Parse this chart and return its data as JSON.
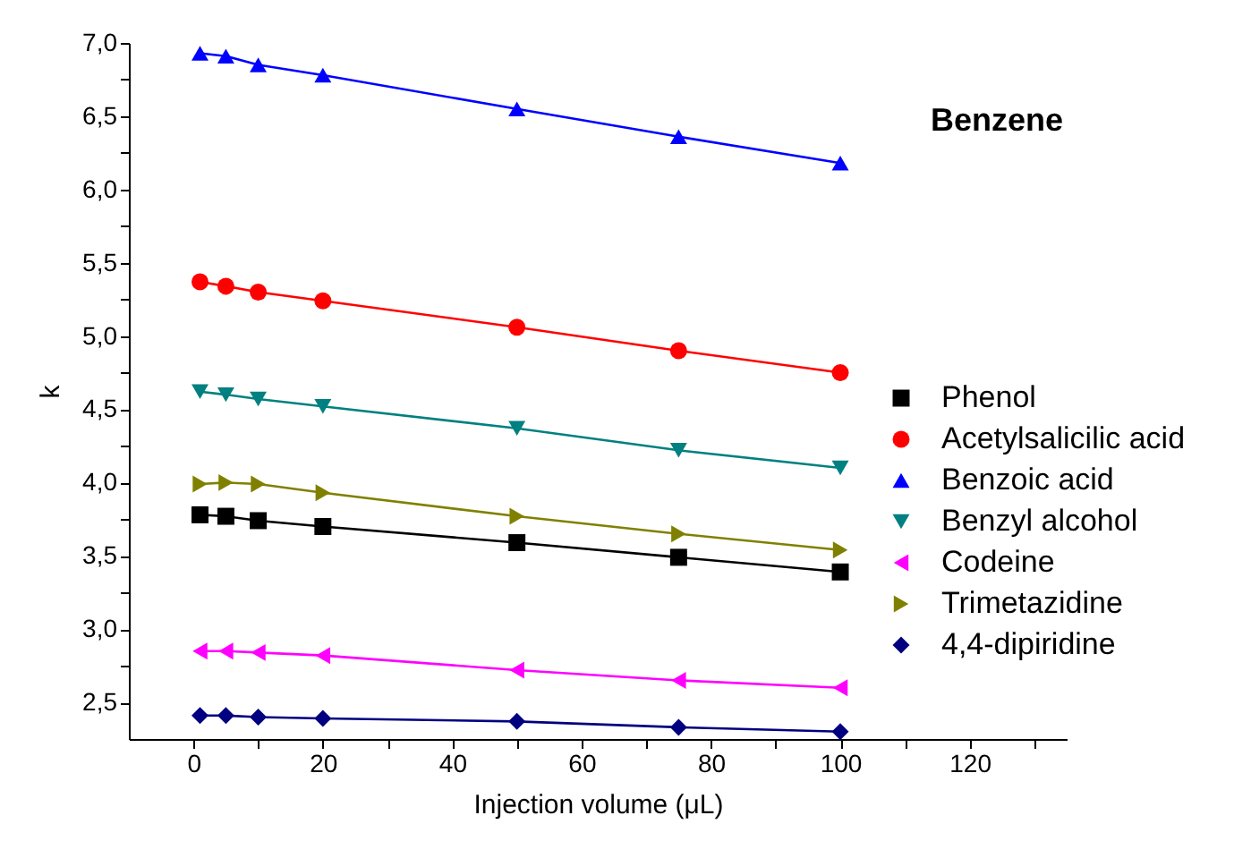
{
  "chart_data": {
    "type": "line",
    "annotations": [
      "Benzene"
    ],
    "xlabel": "Injection volume (μL)",
    "ylabel": "k",
    "x": [
      1,
      5,
      10,
      20,
      50,
      75,
      100
    ],
    "series": [
      {
        "name": "Phenol",
        "color": "#000000",
        "marker": "square",
        "values": [
          3.78,
          3.77,
          3.74,
          3.7,
          3.59,
          3.49,
          3.39
        ]
      },
      {
        "name": "Acetylsalicilic acid",
        "color": "#ff0000",
        "marker": "circle",
        "values": [
          5.37,
          5.34,
          5.3,
          5.24,
          5.06,
          4.9,
          4.75
        ]
      },
      {
        "name": "Benzoic acid",
        "color": "#0000ff",
        "marker": "triangle",
        "values": [
          6.93,
          6.91,
          6.85,
          6.78,
          6.55,
          6.36,
          6.18
        ]
      },
      {
        "name": "Benzyl alcohol",
        "color": "#008080",
        "marker": "triangle-down",
        "values": [
          4.62,
          4.6,
          4.57,
          4.52,
          4.37,
          4.22,
          4.1
        ]
      },
      {
        "name": "Codeine",
        "color": "#ff00ff",
        "marker": "triangle-left",
        "values": [
          2.85,
          2.85,
          2.84,
          2.82,
          2.72,
          2.65,
          2.6
        ]
      },
      {
        "name": "Trimetazidine",
        "color": "#808000",
        "marker": "triangle-right",
        "values": [
          3.99,
          4.0,
          3.99,
          3.93,
          3.77,
          3.65,
          3.54
        ]
      },
      {
        "name": "4,4-dipiridine",
        "color": "#000080",
        "marker": "diamond",
        "values": [
          2.41,
          2.41,
          2.4,
          2.39,
          2.37,
          2.33,
          2.3
        ]
      }
    ],
    "xlim": [
      -10,
      135
    ],
    "xticks": [
      0,
      {
        "value": 10,
        "label": null
      },
      20,
      {
        "value": 30,
        "label": null
      },
      40,
      {
        "value": 50,
        "label": null
      },
      60,
      {
        "value": 70,
        "label": null
      },
      80,
      {
        "value": 90,
        "label": null
      },
      100,
      {
        "value": 110,
        "label": null
      },
      120,
      {
        "value": 130,
        "label": null
      }
    ],
    "ylim": [
      2.25,
      7.0
    ],
    "yticks": [
      {
        "value": 2.5,
        "label": "2,5"
      },
      {
        "value": 2.75,
        "label": null
      },
      {
        "value": 3.0,
        "label": "3,0"
      },
      {
        "value": 3.25,
        "label": null
      },
      {
        "value": 3.5,
        "label": "3,5"
      },
      {
        "value": 3.75,
        "label": null
      },
      {
        "value": 4.0,
        "label": "4,0"
      },
      {
        "value": 4.25,
        "label": null
      },
      {
        "value": 4.5,
        "label": "4,5"
      },
      {
        "value": 4.75,
        "label": null
      },
      {
        "value": 5.0,
        "label": "5,0"
      },
      {
        "value": 5.25,
        "label": null
      },
      {
        "value": 5.5,
        "label": "5,5"
      },
      {
        "value": 5.75,
        "label": null
      },
      {
        "value": 6.0,
        "label": "6,0"
      },
      {
        "value": 6.25,
        "label": null
      },
      {
        "value": 6.5,
        "label": "6,5"
      },
      {
        "value": 6.75,
        "label": null
      },
      {
        "value": 7.0,
        "label": "7,0"
      }
    ],
    "grid": false,
    "legend": "right",
    "line_style": "solid"
  }
}
